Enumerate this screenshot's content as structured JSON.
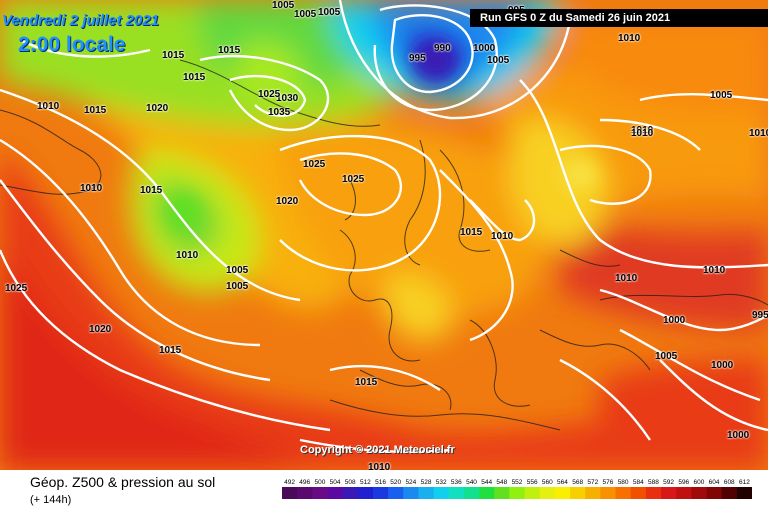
{
  "header": {
    "date": "Vendredi 2 juillet 2021",
    "time": "2:00 locale",
    "run": "Run GFS 0 Z du Samedi 26 juin 2021"
  },
  "footer": {
    "title": "Géop. Z500 & pression au sol",
    "subtitle": "(+ 144h)",
    "copyright": "Copyright © 2021 Meteociel.fr"
  },
  "legend": {
    "values": [
      "492",
      "496",
      "500",
      "504",
      "508",
      "512",
      "516",
      "520",
      "524",
      "528",
      "532",
      "536",
      "540",
      "544",
      "548",
      "552",
      "556",
      "560",
      "564",
      "568",
      "572",
      "576",
      "580",
      "584",
      "588",
      "592",
      "596",
      "600",
      "604",
      "608",
      "612"
    ],
    "colors": [
      "#4a0a5a",
      "#5a0a6e",
      "#6a0b86",
      "#5a0aa0",
      "#3a1ab4",
      "#2020d0",
      "#1a3ae0",
      "#1a60f0",
      "#1a8af0",
      "#1ab0f0",
      "#10d0f0",
      "#10e0c0",
      "#10e090",
      "#20e040",
      "#60e020",
      "#90f010",
      "#c0f010",
      "#e6f010",
      "#f8f000",
      "#f8d000",
      "#f8b000",
      "#f89000",
      "#f87000",
      "#f05000",
      "#e83010",
      "#d81818",
      "#c01010",
      "#a00a0a",
      "#800606",
      "#500202",
      "#200000"
    ]
  },
  "pressure_labels": [
    {
      "value": "1005"
    },
    {
      "value": "1005"
    },
    {
      "value": "1005"
    },
    {
      "value": "995"
    },
    {
      "value": "1010"
    },
    {
      "value": "1015"
    },
    {
      "value": "1015"
    },
    {
      "value": "1015"
    },
    {
      "value": "990"
    },
    {
      "value": "995"
    },
    {
      "value": "1000"
    },
    {
      "value": "1005"
    },
    {
      "value": "1010"
    },
    {
      "value": "1030"
    },
    {
      "value": "1025"
    },
    {
      "value": "1035"
    },
    {
      "value": "1010"
    },
    {
      "value": "1015"
    },
    {
      "value": "1020"
    },
    {
      "value": "1005"
    },
    {
      "value": "1010"
    },
    {
      "value": "1010"
    },
    {
      "value": "1025"
    },
    {
      "value": "1025"
    },
    {
      "value": "1010"
    },
    {
      "value": "1015"
    },
    {
      "value": "1020"
    },
    {
      "value": "1015"
    },
    {
      "value": "1010"
    },
    {
      "value": "1010"
    },
    {
      "value": "1005"
    },
    {
      "value": "1005"
    },
    {
      "value": "1010"
    },
    {
      "value": "1010"
    },
    {
      "value": "1025"
    },
    {
      "value": "995"
    },
    {
      "value": "1020"
    },
    {
      "value": "1000"
    },
    {
      "value": "1015"
    },
    {
      "value": "1005"
    },
    {
      "value": "1000"
    },
    {
      "value": "1015"
    },
    {
      "value": "1000"
    },
    {
      "value": "1010"
    }
  ]
}
